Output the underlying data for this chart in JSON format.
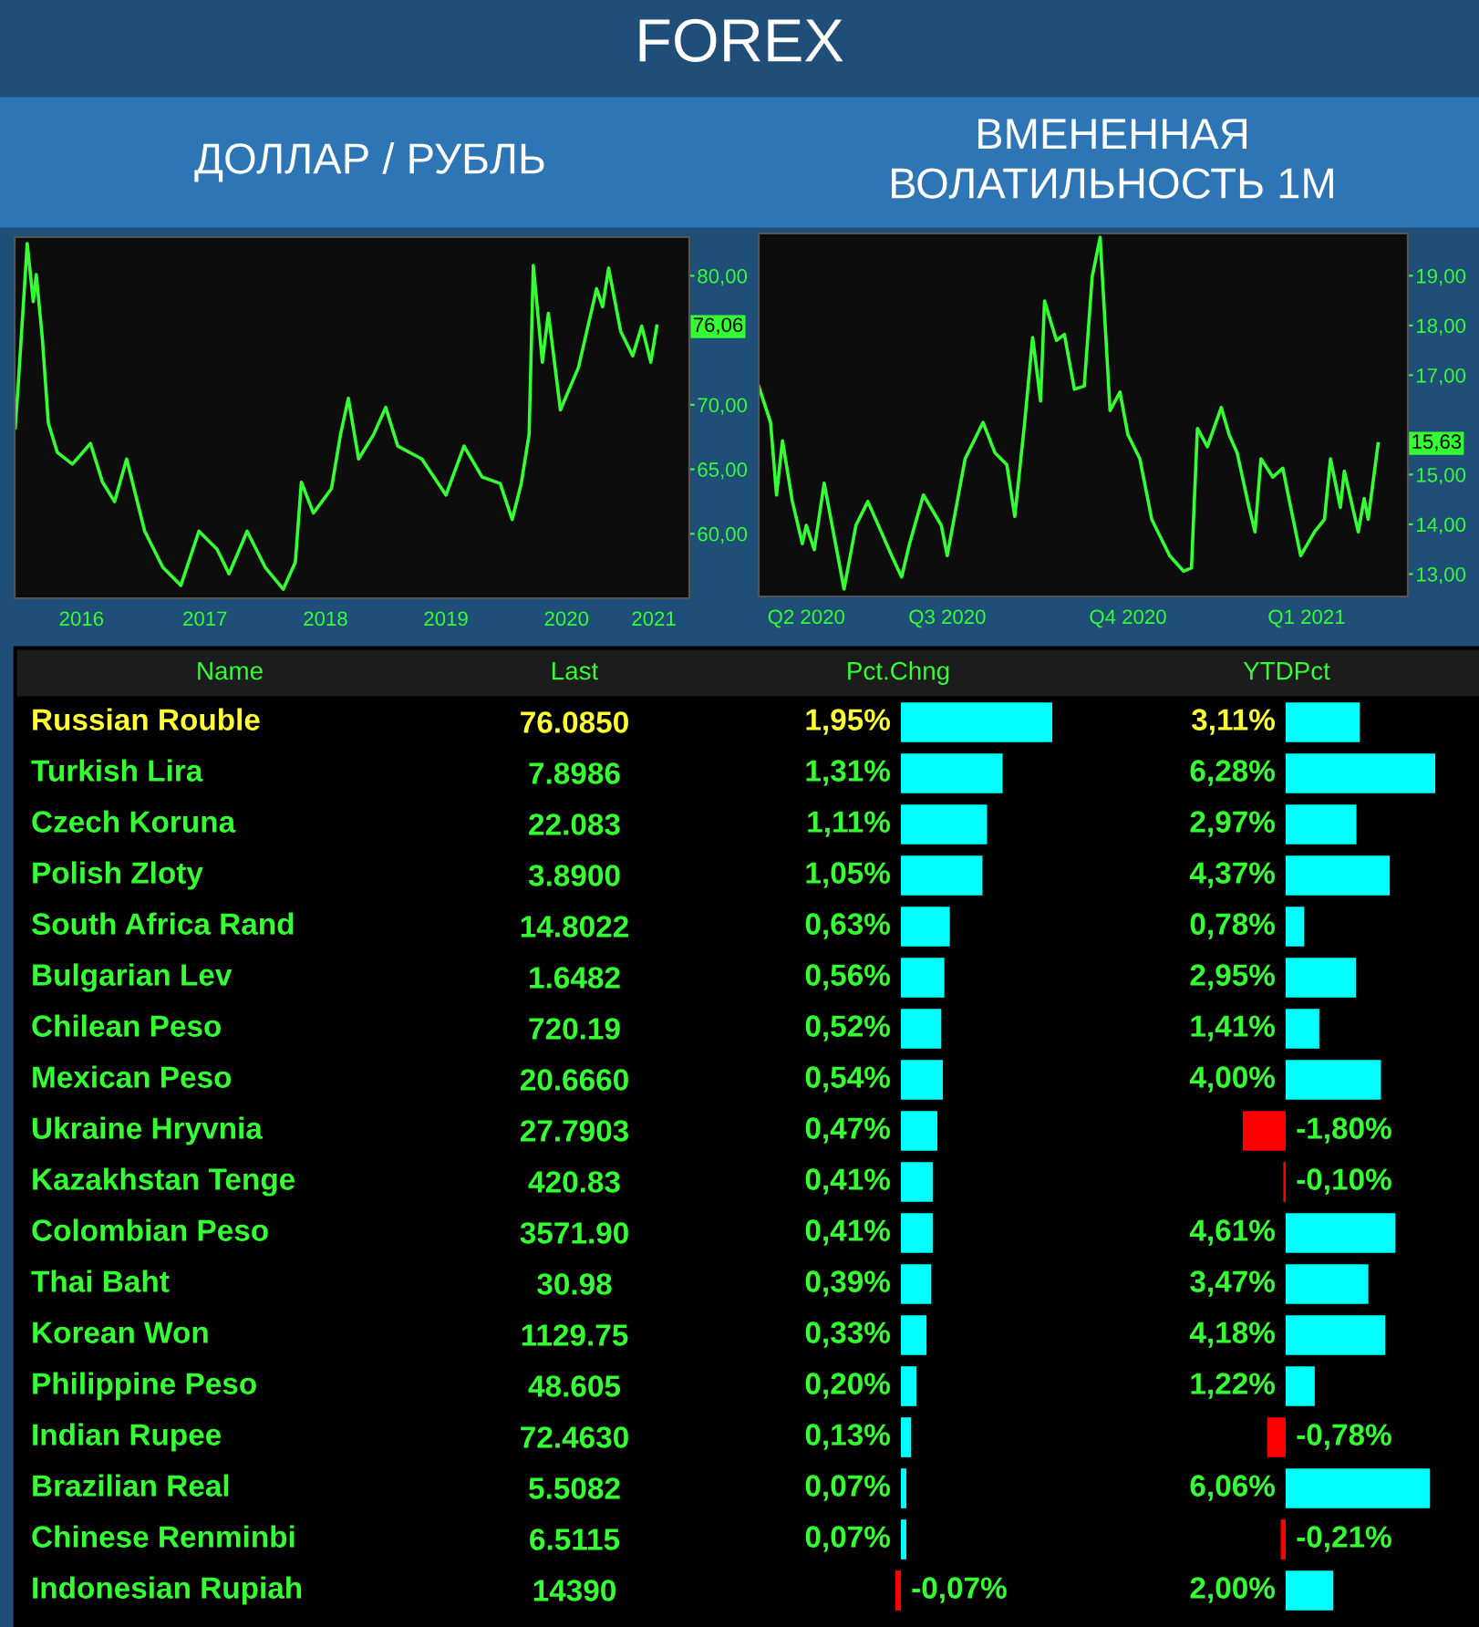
{
  "chart_data": [
    {
      "type": "other",
      "title": "FOREX"
    },
    {
      "type": "line",
      "title": "ДОЛЛАР / РУБЛЬ",
      "xlim": [
        2015.92,
        2021.52
      ],
      "ylim": [
        55,
        83
      ],
      "xticks": [
        {
          "value": 2016.475,
          "label": "2016"
        },
        {
          "value": 2017.5,
          "label": "2017"
        },
        {
          "value": 2018.5,
          "label": "2018"
        },
        {
          "value": 2019.5,
          "label": "2019"
        },
        {
          "value": 2020.5,
          "label": "2020"
        },
        {
          "value": 2021.225,
          "label": "2021"
        }
      ],
      "yticks": [
        {
          "value": 60,
          "label": "60,00"
        },
        {
          "value": 65,
          "label": "65,00"
        },
        {
          "value": 70,
          "label": "70,00"
        },
        {
          "value": 80,
          "label": "80,00"
        }
      ],
      "annotations": [
        {
          "text": "76,06",
          "y": 76.06
        }
      ],
      "series": [
        {
          "color": "#33ff33",
          "x": [
            2015.925,
            2015.95,
            2016.025,
            2016.075,
            2016.1,
            2016.15,
            2016.2,
            2016.275,
            2016.4,
            2016.55,
            2016.65,
            2016.75,
            2016.85,
            2017.0,
            2017.15,
            2017.3,
            2017.45,
            2017.6,
            2017.7,
            2017.85,
            2018.0,
            2018.15,
            2018.25,
            2018.3,
            2018.4,
            2018.55,
            2018.625,
            2018.69,
            2018.775,
            2018.9,
            2019.0,
            2019.1,
            2019.3,
            2019.5,
            2019.65,
            2019.8,
            2019.95,
            2020.05,
            2020.125,
            2020.19,
            2020.225,
            2020.3,
            2020.35,
            2020.45,
            2020.6,
            2020.75,
            2020.8,
            2020.85,
            2020.95,
            2021.05,
            2021.125,
            2021.2,
            2021.25
          ],
          "values": [
            68.2,
            71.5,
            82.5,
            78.0,
            80.1,
            75.2,
            68.6,
            66.3,
            65.4,
            67.0,
            64.0,
            62.5,
            65.8,
            60.2,
            57.4,
            56.0,
            60.2,
            58.8,
            56.9,
            60.2,
            57.4,
            55.7,
            57.8,
            64.0,
            61.6,
            63.5,
            67.7,
            70.5,
            65.8,
            67.7,
            69.8,
            66.8,
            65.8,
            63.0,
            66.8,
            64.4,
            63.9,
            61.1,
            63.9,
            67.7,
            80.8,
            73.3,
            77.1,
            69.6,
            72.9,
            79.0,
            77.6,
            80.6,
            75.7,
            73.8,
            76.1,
            73.3,
            76.1
          ]
        }
      ]
    },
    {
      "type": "line",
      "title": "ВМЕНЕННАЯ\nВОЛАТИЛЬНОСТЬ 1M",
      "xlim": [
        "2020-05-13",
        "2021-04-05"
      ],
      "ylim": [
        12.55,
        19.85
      ],
      "xticks": [
        {
          "value": "2020-06-06",
          "label": "Q2 2020"
        },
        {
          "value": "2020-08-16",
          "label": "Q3 2020"
        },
        {
          "value": "2020-11-15",
          "label": "Q4 2020"
        },
        {
          "value": "2021-02-13",
          "label": "Q1 2021"
        }
      ],
      "yticks": [
        {
          "value": 13,
          "label": "13,00"
        },
        {
          "value": 14,
          "label": "14,00"
        },
        {
          "value": 15,
          "label": "15,00"
        },
        {
          "value": 17,
          "label": "17,00"
        },
        {
          "value": 18,
          "label": "18,00"
        },
        {
          "value": 19,
          "label": "19,00"
        }
      ],
      "annotations": [
        {
          "text": "15,63",
          "y": 15.63
        }
      ],
      "series": [
        {
          "color": "#33ff33",
          "x": [
            "2020-05-13",
            "2020-05-19",
            "2020-05-22",
            "2020-05-25",
            "2020-05-30",
            "2020-06-04",
            "2020-06-06",
            "2020-06-10",
            "2020-06-15",
            "2020-06-25",
            "2020-07-01",
            "2020-07-07",
            "2020-07-19",
            "2020-07-24",
            "2020-07-28",
            "2020-08-04",
            "2020-08-13",
            "2020-08-16",
            "2020-08-25",
            "2020-09-03",
            "2020-09-09",
            "2020-09-15",
            "2020-09-19",
            "2020-09-24",
            "2020-09-28",
            "2020-10-02",
            "2020-10-04",
            "2020-10-10",
            "2020-10-14",
            "2020-10-19",
            "2020-10-24",
            "2020-10-28",
            "2020-11-01",
            "2020-11-06",
            "2020-11-11",
            "2020-11-15",
            "2020-11-21",
            "2020-11-27",
            "2020-12-06",
            "2020-12-13",
            "2020-12-17",
            "2020-12-20",
            "2020-12-25",
            "2021-01-01",
            "2021-01-05",
            "2021-01-09",
            "2021-01-15",
            "2021-01-18",
            "2021-01-21",
            "2021-01-27",
            "2021-02-01",
            "2021-02-05",
            "2021-02-10",
            "2021-02-17",
            "2021-02-22",
            "2021-02-25",
            "2021-03-02",
            "2021-03-04",
            "2021-03-11",
            "2021-03-14",
            "2021-03-16",
            "2021-03-21"
          ],
          "values": [
            16.78,
            16.05,
            14.59,
            15.68,
            14.46,
            13.61,
            13.98,
            13.49,
            14.83,
            12.7,
            13.98,
            14.46,
            13.37,
            12.94,
            13.61,
            14.59,
            13.98,
            13.37,
            15.32,
            16.05,
            15.44,
            15.2,
            14.16,
            16.05,
            17.76,
            16.48,
            18.49,
            17.7,
            17.82,
            16.72,
            16.78,
            18.98,
            19.77,
            16.29,
            16.66,
            15.8,
            15.32,
            14.1,
            13.37,
            13.06,
            13.12,
            15.93,
            15.56,
            16.35,
            15.8,
            15.44,
            14.34,
            13.85,
            15.32,
            14.95,
            15.13,
            14.34,
            13.37,
            13.85,
            14.1,
            15.32,
            14.34,
            15.07,
            13.85,
            14.52,
            14.1,
            15.62
          ]
        }
      ]
    },
    {
      "type": "other",
      "title": "Last",
      "annotations": [
        "76.0850",
        "7.8986",
        "22.083",
        "3.8900",
        "14.8022",
        "1.6482",
        "720.19",
        "20.6660",
        "27.7903",
        "420.83",
        "3571.90",
        "30.98",
        "1129.75",
        "48.605",
        "72.4630",
        "5.5082",
        "6.5115",
        "14390"
      ]
    },
    {
      "type": "bar",
      "orientation": "horizontal",
      "title": "Pct.Chng",
      "ylabel": "Name",
      "categories": [
        "Russian Rouble",
        "Turkish Lira",
        "Czech Koruna",
        "Polish Zloty",
        "South Africa Rand",
        "Bulgarian Lev",
        "Chilean Peso",
        "Mexican Peso",
        "Ukraine Hryvnia",
        "Kazakhstan Tenge",
        "Colombian Peso",
        "Thai Baht",
        "Korean Won",
        "Philippine Peso",
        "Indian Rupee",
        "Brazilian Real",
        "Chinese Renminbi",
        "Indonesian Rupiah"
      ],
      "values": [
        1.95,
        1.31,
        1.11,
        1.05,
        0.63,
        0.56,
        0.52,
        0.54,
        0.47,
        0.41,
        0.41,
        0.39,
        0.33,
        0.2,
        0.13,
        0.07,
        0.07,
        -0.07
      ],
      "value_labels": [
        "1,95%",
        "1,31%",
        "1,11%",
        "1,05%",
        "0,63%",
        "0,56%",
        "0,52%",
        "0,54%",
        "0,47%",
        "0,41%",
        "0,41%",
        "0,39%",
        "0,33%",
        "0,20%",
        "0,13%",
        "0,07%",
        "0,07%",
        "-0,07%"
      ],
      "colors": [
        "#00ffff",
        "#00ffff",
        "#00ffff",
        "#00ffff",
        "#00ffff",
        "#00ffff",
        "#00ffff",
        "#00ffff",
        "#00ffff",
        "#00ffff",
        "#00ffff",
        "#00ffff",
        "#00ffff",
        "#00ffff",
        "#00ffff",
        "#00ffff",
        "#00ffff",
        "#ff0000"
      ]
    },
    {
      "type": "bar",
      "orientation": "horizontal",
      "title": "YTDPct",
      "values": [
        3.11,
        6.28,
        2.97,
        4.37,
        0.78,
        2.95,
        1.41,
        4.0,
        -1.8,
        -0.1,
        4.61,
        3.47,
        4.18,
        1.22,
        -0.78,
        6.06,
        -0.21,
        2.0
      ],
      "value_labels": [
        "3,11%",
        "6,28%",
        "2,97%",
        "4,37%",
        "0,78%",
        "2,95%",
        "1,41%",
        "4,00%",
        "-1,80%",
        "-0,10%",
        "4,61%",
        "3,47%",
        "4,18%",
        "1,22%",
        "-0,78%",
        "6,06%",
        "-0,21%",
        "2,00%"
      ],
      "colors": [
        "#00ffff",
        "#00ffff",
        "#00ffff",
        "#00ffff",
        "#00ffff",
        "#00ffff",
        "#00ffff",
        "#00ffff",
        "#ff0000",
        "#ff0000",
        "#00ffff",
        "#00ffff",
        "#00ffff",
        "#00ffff",
        "#ff0000",
        "#00ffff",
        "#ff0000",
        "#00ffff"
      ]
    }
  ]
}
